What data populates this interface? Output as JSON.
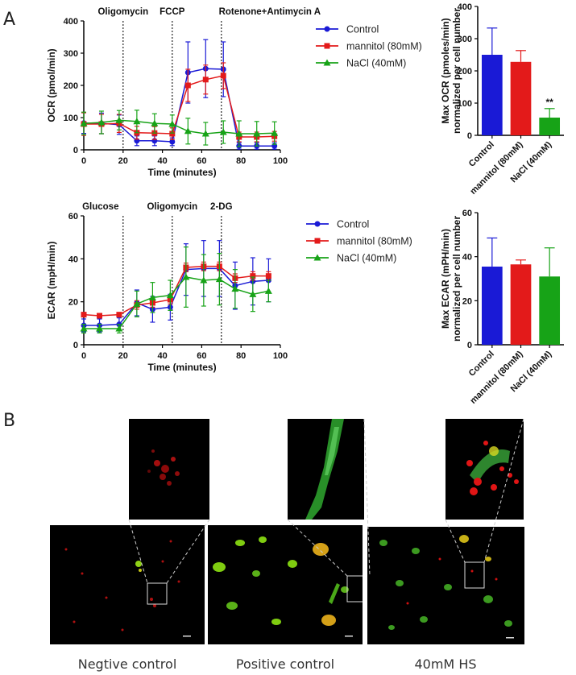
{
  "panel_a_label": "A",
  "panel_b_label": "B",
  "colors": {
    "control": "#1a1ad6",
    "mannitol": "#e31a1a",
    "nacl": "#17a317"
  },
  "chart_data": [
    {
      "id": "ocr-line",
      "type": "line",
      "ylabel": "OCR (pmol/min)",
      "xlabel": "Time (minutes)",
      "xlim": [
        0,
        100
      ],
      "ylim": [
        0,
        400
      ],
      "xticks": [
        0,
        20,
        40,
        60,
        80,
        100
      ],
      "yticks": [
        0,
        100,
        200,
        300,
        400
      ],
      "injections": [
        {
          "x": 20,
          "label": "Oligomycin"
        },
        {
          "x": 45,
          "label": "FCCP"
        },
        {
          "x": 70,
          "label": "Rotenone+Antimycin A"
        }
      ],
      "series": [
        {
          "name": "Control",
          "color": "#1a1ad6",
          "marker": "circle",
          "x": [
            0,
            9,
            18,
            27,
            36,
            45,
            53,
            62,
            71,
            79,
            88,
            97
          ],
          "y": [
            83,
            82,
            78,
            28,
            28,
            25,
            240,
            252,
            250,
            12,
            12,
            12
          ],
          "err": [
            32,
            32,
            30,
            15,
            15,
            12,
            95,
            90,
            85,
            10,
            10,
            10
          ]
        },
        {
          "name": "mannitol (80mM)",
          "color": "#e31a1a",
          "marker": "square",
          "x": [
            0,
            9,
            18,
            27,
            36,
            45,
            53,
            62,
            71,
            79,
            88,
            97
          ],
          "y": [
            80,
            80,
            82,
            53,
            52,
            50,
            200,
            218,
            230,
            40,
            40,
            42
          ],
          "err": [
            35,
            30,
            28,
            20,
            20,
            18,
            50,
            45,
            40,
            15,
            15,
            15
          ]
        },
        {
          "name": "NaCl (40mM)",
          "color": "#17a317",
          "marker": "triangle",
          "x": [
            0,
            9,
            18,
            27,
            36,
            45,
            53,
            62,
            71,
            79,
            88,
            97
          ],
          "y": [
            82,
            85,
            92,
            88,
            82,
            80,
            58,
            50,
            55,
            50,
            50,
            52
          ],
          "err": [
            35,
            35,
            30,
            35,
            30,
            28,
            40,
            35,
            35,
            40,
            38,
            35
          ]
        }
      ]
    },
    {
      "id": "ocr-bar",
      "type": "bar",
      "ylabel": "Max OCR (pmoles/min) normalized per cell number",
      "ylabel_lines": [
        "Max OCR (pmoles/min)",
        "normalized per cell number"
      ],
      "ylim": [
        0,
        400
      ],
      "yticks": [
        0,
        100,
        200,
        300,
        400
      ],
      "categories": [
        "Control",
        "mannitol (80mM)",
        "NaCl (40mM)"
      ],
      "values": [
        250,
        228,
        55
      ],
      "errors": [
        83,
        35,
        28
      ],
      "annotations": [
        "",
        "",
        "**"
      ]
    },
    {
      "id": "ecar-line",
      "type": "line",
      "ylabel": "ECAR (mpH/min)",
      "xlabel": "Time (minutes)",
      "xlim": [
        0,
        100
      ],
      "ylim": [
        0,
        60
      ],
      "xticks": [
        0,
        20,
        40,
        60,
        80,
        100
      ],
      "yticks": [
        0,
        20,
        40,
        60
      ],
      "injections": [
        {
          "x": 20,
          "label": "Glucose"
        },
        {
          "x": 45,
          "label": "Oligomycin"
        },
        {
          "x": 70,
          "label": "2-DG"
        }
      ],
      "series": [
        {
          "name": "Control",
          "color": "#1a1ad6",
          "marker": "circle",
          "x": [
            0,
            8,
            18,
            27,
            35,
            44,
            52,
            61,
            69,
            77,
            86,
            94
          ],
          "y": [
            9,
            9,
            9.5,
            19.5,
            16.5,
            17.5,
            35,
            35.5,
            35.5,
            27.5,
            29.5,
            30
          ],
          "err": [
            3,
            3,
            3,
            6,
            6,
            6,
            12,
            13,
            13,
            11,
            11,
            10
          ]
        },
        {
          "name": "mannitol (80mM)",
          "color": "#e31a1a",
          "marker": "square",
          "x": [
            0,
            8,
            18,
            27,
            35,
            44,
            52,
            61,
            69,
            77,
            86,
            94
          ],
          "y": [
            14,
            13.5,
            14,
            18.5,
            19.5,
            21,
            36,
            36.5,
            36.5,
            31,
            32,
            32
          ],
          "err": [
            1,
            1,
            1,
            2,
            2,
            2,
            2,
            2,
            2,
            2,
            2,
            2
          ]
        },
        {
          "name": "NaCl (40mM)",
          "color": "#17a317",
          "marker": "triangle",
          "x": [
            0,
            8,
            18,
            27,
            35,
            44,
            52,
            61,
            69,
            77,
            86,
            94
          ],
          "y": [
            7.5,
            7.5,
            7.5,
            19,
            22,
            23,
            31.5,
            30,
            30.5,
            26,
            23.5,
            25
          ],
          "err": [
            2,
            2,
            2,
            6,
            7,
            7,
            14,
            12,
            12,
            9,
            8,
            5
          ]
        }
      ]
    },
    {
      "id": "ecar-bar",
      "type": "bar",
      "ylabel": "Max ECAR (mPH/min) normalized per cell number",
      "ylabel_lines": [
        "Max ECAR (mPH/min)",
        "normalized per cell number"
      ],
      "ylim": [
        0,
        60
      ],
      "yticks": [
        0,
        20,
        40,
        60
      ],
      "categories": [
        "Control",
        "mannitol (80mM)",
        "NaCl (40mM)"
      ],
      "values": [
        35.5,
        36.5,
        31
      ],
      "errors": [
        13,
        2,
        13
      ],
      "annotations": [
        "",
        "",
        ""
      ]
    }
  ],
  "micrographs": [
    {
      "caption": "Negtive control"
    },
    {
      "caption": "Positive control"
    },
    {
      "caption": "40mM HS"
    }
  ]
}
